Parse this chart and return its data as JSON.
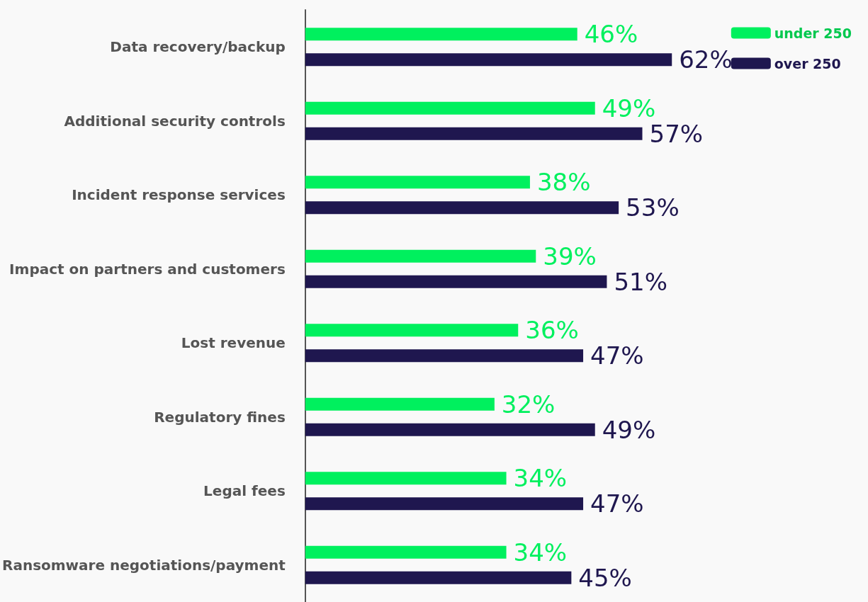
{
  "chart_data": {
    "type": "bar",
    "orientation": "horizontal",
    "legend": "top right",
    "grid": false,
    "categories": [
      "Data recovery/backup",
      "Additional security controls",
      "Incident response services",
      "Impact on partners and customers",
      "Lost revenue",
      "Regulatory fines",
      "Legal fees",
      "Ransomware negotiations/payment"
    ],
    "series": [
      {
        "name": "under 250",
        "color": "#00f05e",
        "values": [
          46,
          49,
          38,
          39,
          36,
          32,
          34,
          34
        ],
        "value_labels": [
          "46%",
          "49%",
          "38%",
          "39%",
          "36%",
          "32%",
          "34%",
          "34%"
        ]
      },
      {
        "name": "over 250",
        "color": "#1f174f",
        "values": [
          62,
          57,
          53,
          51,
          47,
          49,
          47,
          45
        ],
        "value_labels": [
          "62%",
          "57%",
          "53%",
          "51%",
          "47%",
          "49%",
          "47%",
          "45%"
        ]
      }
    ]
  }
}
